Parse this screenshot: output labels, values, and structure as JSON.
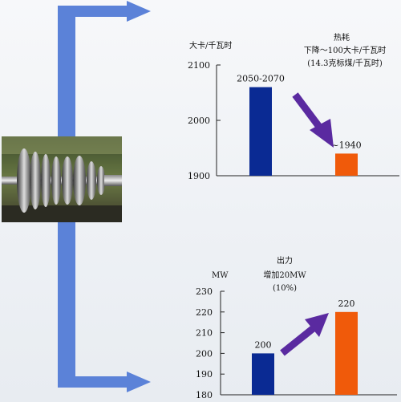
{
  "colors": {
    "flow_arrow": "#5b82d8",
    "bar_blue": "#0a2a93",
    "bar_orange": "#f05a0a",
    "trend_arrow": "#5a2aa0"
  },
  "icons": [
    "flow-arrow-icon",
    "trend-arrow-icon"
  ],
  "chart_data": [
    {
      "type": "bar",
      "y_unit": "大卡/千瓦时",
      "title": "热耗",
      "annotation": [
        "下降～100大卡/千瓦时",
        "(14.3克标煤/千瓦时)"
      ],
      "ylim": [
        1900,
        2100
      ],
      "yticks": [
        1900,
        2000,
        2100
      ],
      "series": [
        {
          "values": [
            2060,
            1940
          ],
          "labels": [
            "2050-2070",
            "~1940"
          ],
          "colors": [
            "#0a2a93",
            "#f05a0a"
          ]
        }
      ],
      "grid": false
    },
    {
      "type": "bar",
      "y_unit": "MW",
      "title": "出力",
      "annotation": [
        "增加20MW",
        "(10%)"
      ],
      "ylim": [
        180,
        230
      ],
      "yticks": [
        180,
        190,
        200,
        210,
        220,
        230
      ],
      "series": [
        {
          "values": [
            200,
            220
          ],
          "labels": [
            "200",
            "220"
          ],
          "colors": [
            "#0a2a93",
            "#f05a0a"
          ]
        }
      ],
      "grid": false
    }
  ]
}
